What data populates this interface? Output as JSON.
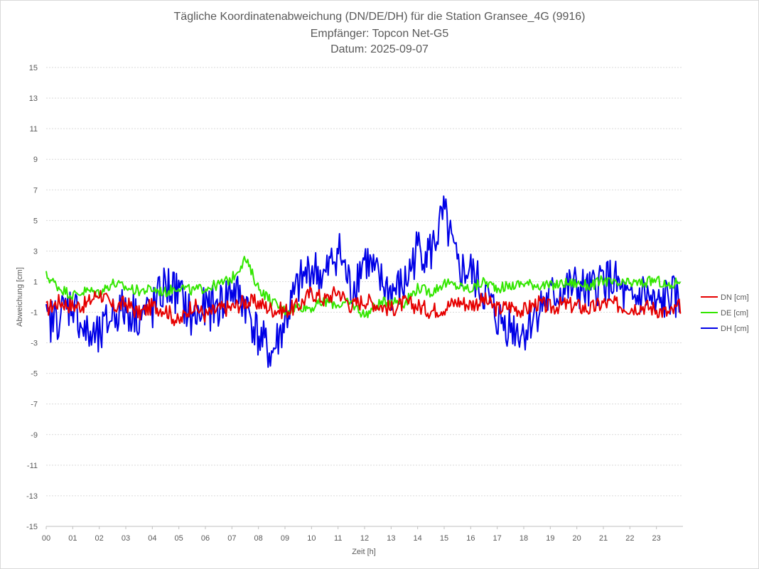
{
  "chart_data": {
    "type": "line",
    "title": [
      "Tägliche Koordinatenabweichung (DN/DE/DH) für die Station Gransee_4G (9916)",
      "Empfänger: Topcon Net-G5",
      "Datum: 2025-09-07"
    ],
    "xlabel": "Zeit [h]",
    "ylabel": "Abweichung [cm]",
    "xlim": [
      0,
      24
    ],
    "ylim": [
      -15,
      15
    ],
    "x_ticks": [
      "00",
      "01",
      "02",
      "03",
      "04",
      "05",
      "06",
      "07",
      "08",
      "09",
      "10",
      "11",
      "12",
      "13",
      "14",
      "15",
      "16",
      "17",
      "18",
      "19",
      "20",
      "21",
      "22",
      "23"
    ],
    "y_ticks": [
      15,
      13,
      11,
      9,
      7,
      5,
      3,
      1,
      -1,
      -3,
      -5,
      -7,
      -9,
      -11,
      -13,
      -15
    ],
    "grid": "horizontal",
    "legend_position": "right",
    "x": [
      0,
      0.5,
      1,
      1.5,
      2,
      2.5,
      3,
      3.5,
      4,
      4.5,
      5,
      5.5,
      6,
      6.5,
      7,
      7.5,
      8,
      8.5,
      9,
      9.5,
      10,
      10.5,
      11,
      11.5,
      12,
      12.5,
      13,
      13.5,
      14,
      14.5,
      15,
      15.5,
      16,
      16.5,
      17,
      17.5,
      18,
      18.5,
      19,
      19.5,
      20,
      20.5,
      21,
      21.5,
      22,
      22.5,
      23,
      23.5,
      23.9
    ],
    "series": [
      {
        "name": "DN [cm]",
        "color": "#e60000",
        "values": [
          -0.8,
          -0.3,
          -0.6,
          -0.5,
          0.3,
          -0.7,
          -0.4,
          -1.1,
          -0.6,
          -0.8,
          -1.7,
          -0.5,
          -1.2,
          -0.8,
          -0.7,
          -0.3,
          -0.4,
          -0.8,
          -0.9,
          -0.6,
          0.3,
          -0.2,
          0.4,
          -0.6,
          -0.2,
          -0.5,
          -0.8,
          -0.4,
          -0.6,
          -0.9,
          -0.7,
          -0.3,
          -0.5,
          -0.2,
          -0.8,
          -0.6,
          -0.9,
          -0.4,
          -0.7,
          -0.5,
          -0.6,
          -0.8,
          -0.4,
          -0.5,
          -0.7,
          -0.6,
          -0.8,
          -1.1,
          -0.6
        ]
      },
      {
        "name": "DE [cm]",
        "color": "#33e600",
        "values": [
          1.4,
          0.6,
          0.1,
          0.4,
          0.3,
          0.9,
          0.6,
          0.4,
          0.5,
          0.3,
          0.7,
          0.4,
          0.6,
          0.8,
          1.2,
          2.5,
          0.6,
          -0.3,
          -0.9,
          -0.6,
          -0.7,
          -0.3,
          -0.5,
          -0.4,
          -1.2,
          -0.5,
          -0.2,
          -0.4,
          0.6,
          0.3,
          0.9,
          0.7,
          0.5,
          1.0,
          0.6,
          0.7,
          0.9,
          0.8,
          0.7,
          0.9,
          0.9,
          0.7,
          1.1,
          0.8,
          0.9,
          0.9,
          1.1,
          0.6,
          1.2
        ]
      },
      {
        "name": "DH [cm]",
        "color": "#0000e6",
        "values": [
          -1.8,
          -1.2,
          -0.3,
          -2.5,
          -2.8,
          -1.0,
          -0.8,
          -1.2,
          -0.9,
          0.8,
          0.2,
          -1.5,
          -0.8,
          -0.6,
          0.5,
          -0.4,
          -2.6,
          -3.8,
          -1.6,
          0.7,
          1.9,
          1.2,
          3.2,
          0.4,
          2.6,
          1.1,
          0.3,
          0.7,
          3.2,
          2.9,
          5.4,
          1.8,
          1.6,
          0.3,
          -1.4,
          -1.9,
          -2.3,
          -0.8,
          -0.1,
          0.5,
          0.6,
          0.2,
          1.3,
          0.8,
          -0.6,
          0.3,
          -0.8,
          0.1,
          -0.5
        ]
      }
    ]
  }
}
